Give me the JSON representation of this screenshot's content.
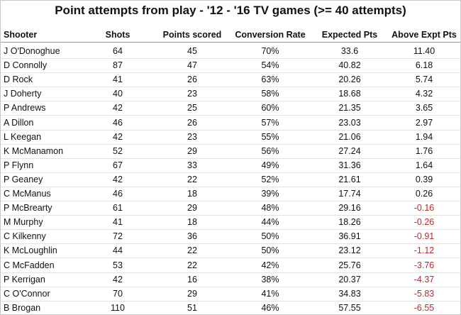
{
  "title": "Point attempts from play - '12 - '16 TV games (>= 40 attempts)",
  "table": {
    "columns": [
      "Shooter",
      "Shots",
      "Points scored",
      "Conversion Rate",
      "Expected Pts",
      "Above Expt Pts"
    ],
    "rows": [
      [
        "J O'Donoghue",
        "64",
        "45",
        "70%",
        "33.6",
        "11.40"
      ],
      [
        "D Connolly",
        "87",
        "47",
        "54%",
        "40.82",
        "6.18"
      ],
      [
        "D Rock",
        "41",
        "26",
        "63%",
        "20.26",
        "5.74"
      ],
      [
        "J Doherty",
        "40",
        "23",
        "58%",
        "18.68",
        "4.32"
      ],
      [
        "P Andrews",
        "42",
        "25",
        "60%",
        "21.35",
        "3.65"
      ],
      [
        "A Dillon",
        "46",
        "26",
        "57%",
        "23.03",
        "2.97"
      ],
      [
        "L Keegan",
        "42",
        "23",
        "55%",
        "21.06",
        "1.94"
      ],
      [
        "K McManamon",
        "52",
        "29",
        "56%",
        "27.24",
        "1.76"
      ],
      [
        "P Flynn",
        "67",
        "33",
        "49%",
        "31.36",
        "1.64"
      ],
      [
        "P Geaney",
        "42",
        "22",
        "52%",
        "21.61",
        "0.39"
      ],
      [
        "C McManus",
        "46",
        "18",
        "39%",
        "17.74",
        "0.26"
      ],
      [
        "P McBrearty",
        "61",
        "29",
        "48%",
        "29.16",
        "-0.16"
      ],
      [
        "M Murphy",
        "41",
        "18",
        "44%",
        "18.26",
        "-0.26"
      ],
      [
        "C Kilkenny",
        "72",
        "36",
        "50%",
        "36.91",
        "-0.91"
      ],
      [
        "K McLoughlin",
        "44",
        "22",
        "50%",
        "23.12",
        "-1.12"
      ],
      [
        "C McFadden",
        "53",
        "22",
        "42%",
        "25.76",
        "-3.76"
      ],
      [
        "P Kerrigan",
        "42",
        "16",
        "38%",
        "20.37",
        "-4.37"
      ],
      [
        "C O'Connor",
        "70",
        "29",
        "41%",
        "34.83",
        "-5.83"
      ],
      [
        "B Brogan",
        "110",
        "51",
        "46%",
        "57.55",
        "-6.55"
      ]
    ]
  }
}
